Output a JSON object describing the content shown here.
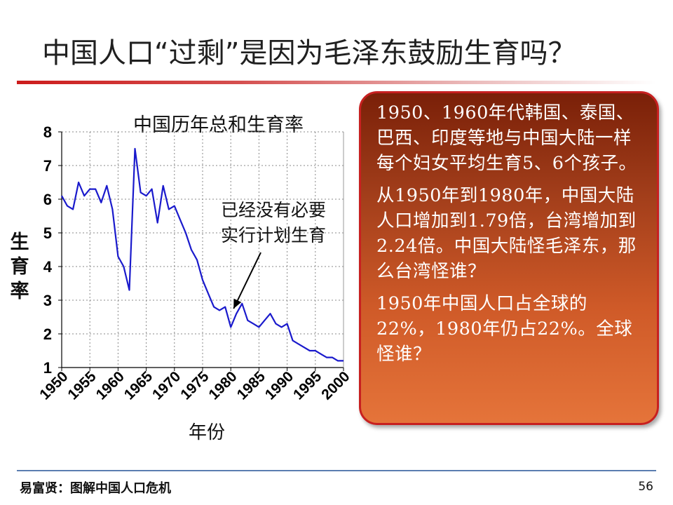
{
  "slide": {
    "title": "中国人口“过剩”是因为毛泽东鼓励生育吗？",
    "footer": "易富贤：图解中国人口危机",
    "page_number": "56"
  },
  "annotation": {
    "line1": "已经没有必要",
    "line2": "实行计划生育"
  },
  "info_box": {
    "paragraphs": [
      "1950、1960年代韩国、泰国、巴西、印度等地与中国大陆一样每个妇女平均生育5、6个孩子。",
      "从1950年到1980年，中国大陆人口增加到1.79倍，台湾增加到2.24倍。中国大陆怪毛泽东，那么台湾怪谁？",
      "1950年中国人口占全球的22%，1980年仍占22%。全球怪谁？"
    ]
  },
  "chart_data": {
    "type": "line",
    "title": "中国历年总和生育率",
    "xlabel": "年份",
    "ylabel": "生育率",
    "xlim": [
      1950,
      2000
    ],
    "ylim": [
      1,
      8
    ],
    "x_ticks": [
      1950,
      1955,
      1960,
      1965,
      1970,
      1975,
      1980,
      1985,
      1990,
      1995,
      2000
    ],
    "y_ticks": [
      1,
      2,
      3,
      4,
      5,
      6,
      7,
      8
    ],
    "grid": true,
    "line_color": "#1a1acc",
    "series": [
      {
        "x": [
          1950,
          1951,
          1952,
          1953,
          1954,
          1955,
          1956,
          1957,
          1958,
          1959,
          1960,
          1961,
          1962,
          1963,
          1964,
          1965,
          1966,
          1967,
          1968,
          1969,
          1970,
          1971,
          1972,
          1973,
          1974,
          1975,
          1976,
          1977,
          1978,
          1979,
          1980,
          1981,
          1982,
          1983,
          1984,
          1985,
          1986,
          1987,
          1988,
          1989,
          1990,
          1991,
          1992,
          1993,
          1994,
          1995,
          1996,
          1997,
          1998,
          1999,
          2000
        ],
        "y": [
          6.1,
          5.8,
          5.7,
          6.5,
          6.1,
          6.3,
          6.3,
          5.9,
          6.4,
          5.7,
          4.3,
          4.0,
          3.3,
          7.5,
          6.2,
          6.1,
          6.3,
          5.3,
          6.4,
          5.7,
          5.8,
          5.4,
          5.0,
          4.5,
          4.2,
          3.6,
          3.2,
          2.8,
          2.7,
          2.8,
          2.2,
          2.6,
          2.9,
          2.4,
          2.3,
          2.2,
          2.4,
          2.6,
          2.3,
          2.2,
          2.3,
          1.8,
          1.7,
          1.6,
          1.5,
          1.5,
          1.4,
          1.3,
          1.3,
          1.2,
          1.2
        ]
      }
    ]
  }
}
